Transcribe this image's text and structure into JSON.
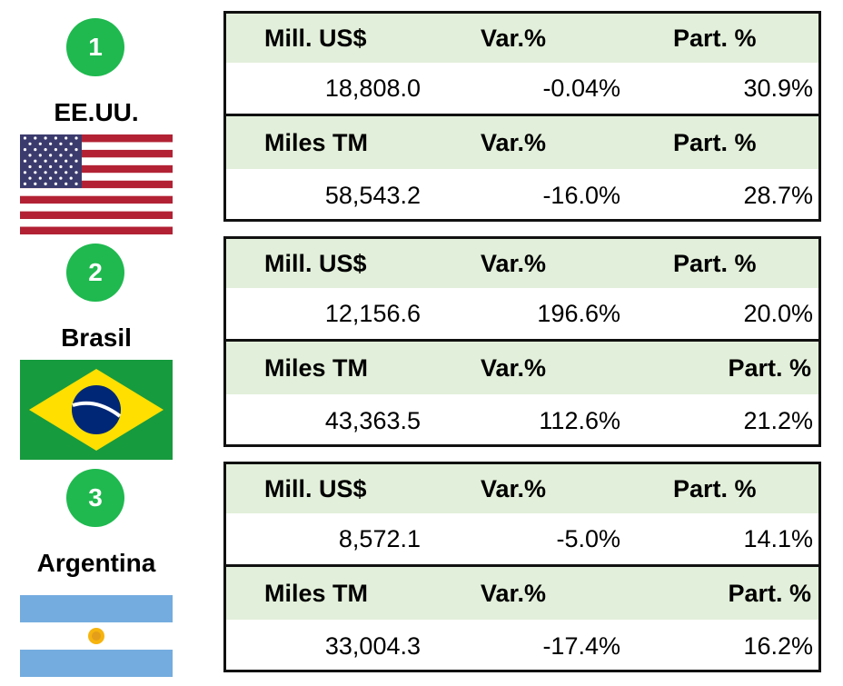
{
  "rankings": [
    {
      "rank": "1",
      "country": "EE.UU.",
      "rows": [
        [
          "Mill. US$",
          "Var.%",
          "Part. %"
        ],
        [
          "18,808.0",
          "-0.04%",
          "30.9%"
        ],
        [
          "Miles TM",
          "Var.%",
          "Part. %"
        ],
        [
          "58,543.2",
          "-16.0%",
          "28.7%"
        ]
      ]
    },
    {
      "rank": "2",
      "country": "Brasil",
      "rows": [
        [
          "Mill. US$",
          "Var.%",
          "Part. %"
        ],
        [
          "12,156.6",
          "196.6%",
          "20.0%"
        ],
        [
          "Miles TM",
          "Var.%",
          "Part. %"
        ],
        [
          "43,363.5",
          "112.6%",
          "21.2%"
        ]
      ]
    },
    {
      "rank": "3",
      "country": "Argentina",
      "rows": [
        [
          "Mill. US$",
          "Var.%",
          "Part. %"
        ],
        [
          "8,572.1",
          "-5.0%",
          "14.1%"
        ],
        [
          "Miles TM",
          "Var.%",
          "Part. %"
        ],
        [
          "33,004.3",
          "-17.4%",
          "16.2%"
        ]
      ]
    }
  ]
}
